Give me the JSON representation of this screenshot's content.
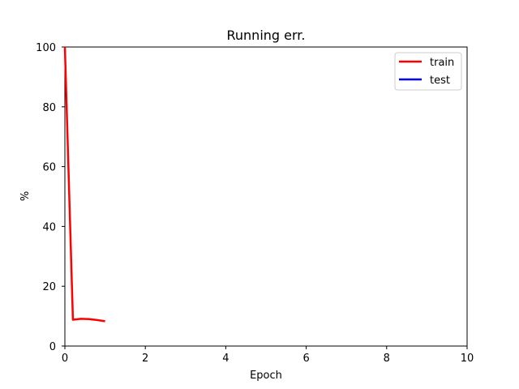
{
  "chart_data": {
    "type": "line",
    "title": "Running err.",
    "xlabel": "Epoch",
    "ylabel": "%",
    "xlim": [
      0,
      10
    ],
    "ylim": [
      0,
      100
    ],
    "xticks": [
      0,
      2,
      4,
      6,
      8,
      10
    ],
    "yticks": [
      0,
      20,
      40,
      60,
      80,
      100
    ],
    "grid": false,
    "legend_position": "top-right",
    "series": [
      {
        "name": "train",
        "color": "#ff0000",
        "x": [
          0.0,
          0.2,
          0.4,
          0.6,
          0.8,
          1.0
        ],
        "y": [
          100.0,
          8.8,
          9.1,
          9.0,
          8.7,
          8.3
        ]
      },
      {
        "name": "test",
        "color": "#0000ff",
        "x": [],
        "y": []
      }
    ]
  }
}
